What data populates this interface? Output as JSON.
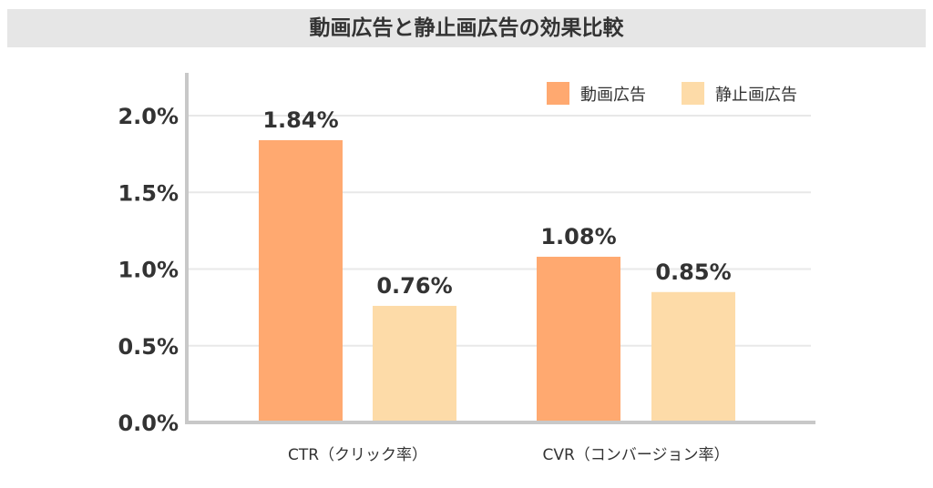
{
  "chart_data": {
    "type": "bar",
    "title": "動画広告と静止画広告の効果比較",
    "categories": [
      "CTR（クリック率）",
      "CVR（コンバージョン率）"
    ],
    "series": [
      {
        "name": "動画広告",
        "values": [
          1.84,
          1.08
        ],
        "labels": [
          "1.84%",
          "1.08%"
        ],
        "color": "#ffa970"
      },
      {
        "name": "静止画広告",
        "values": [
          0.76,
          0.85
        ],
        "labels": [
          "0.76%",
          "0.85%"
        ],
        "color": "#fddba8"
      }
    ],
    "yticks": [
      "0.0%",
      "0.5%",
      "1.0%",
      "1.5%",
      "2.0%"
    ],
    "ytick_values": [
      0,
      0.5,
      1.0,
      1.5,
      2.0
    ],
    "ylim": [
      0,
      2.0
    ],
    "grid": true,
    "legend": "top-right",
    "xlabel": "",
    "ylabel": ""
  }
}
